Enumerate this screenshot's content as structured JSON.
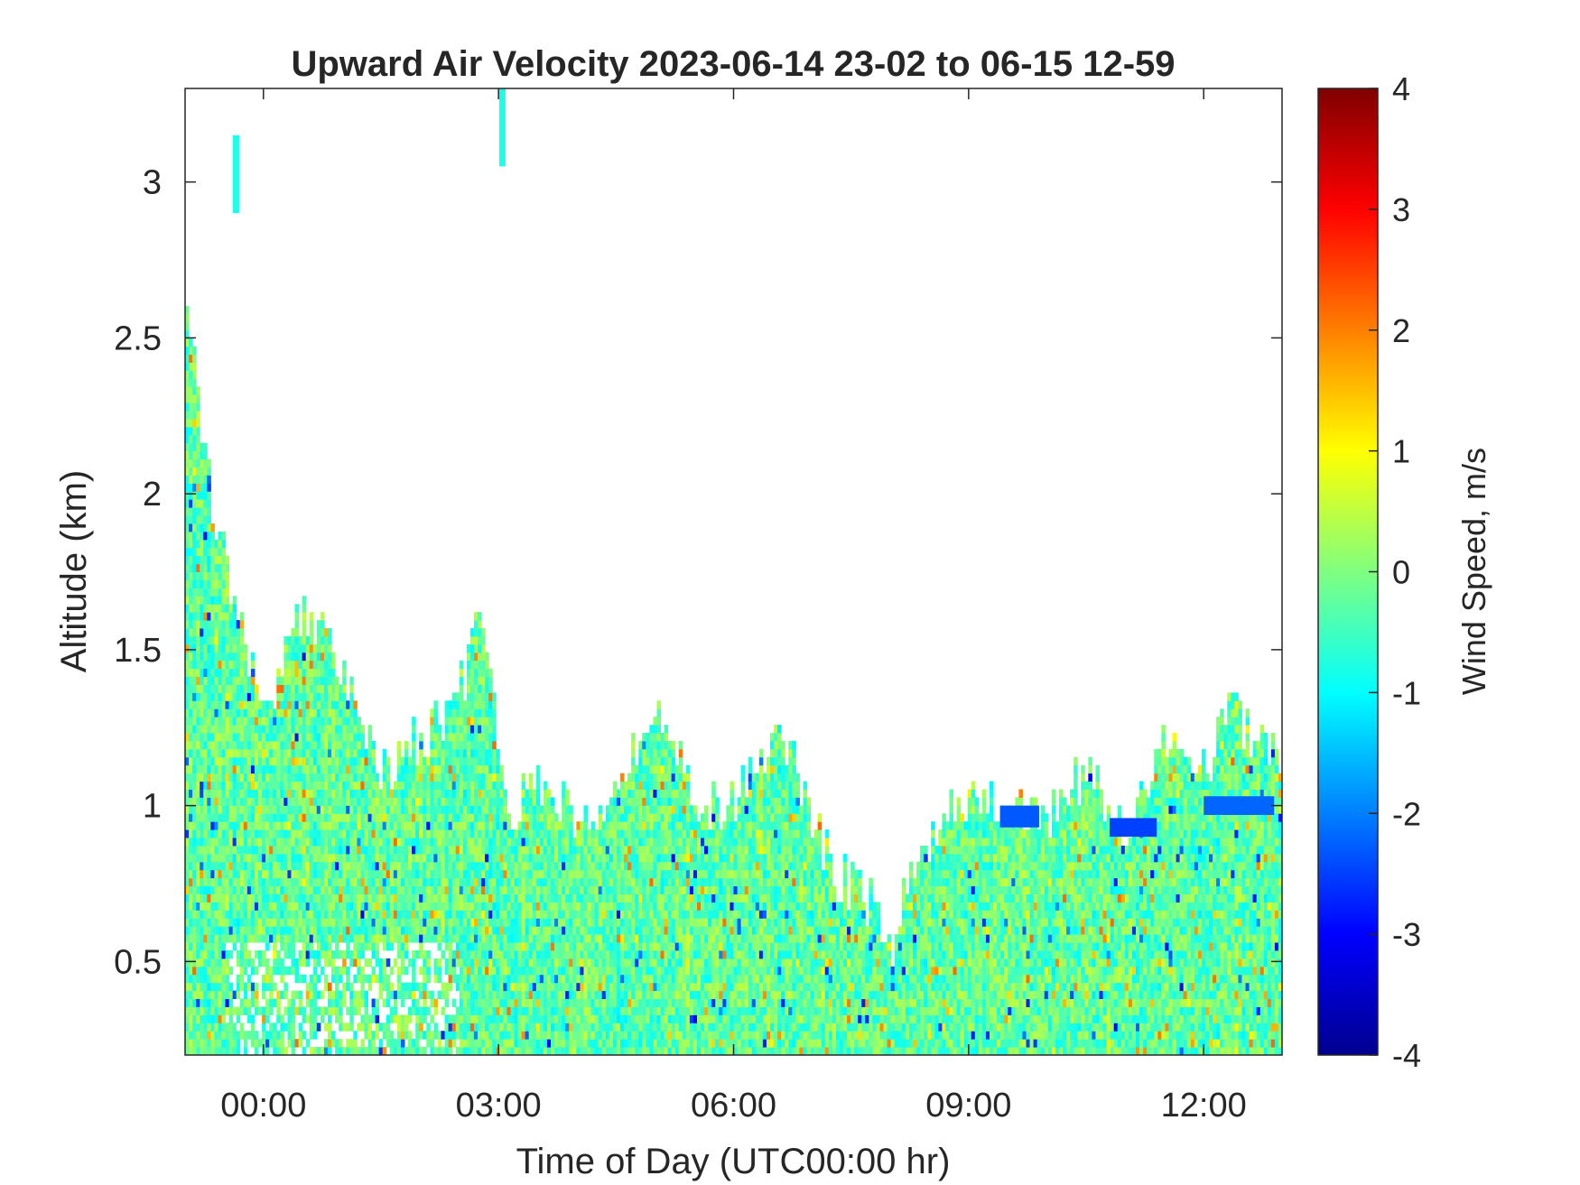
{
  "chart_data": {
    "type": "heatmap",
    "title": "Upward Air Velocity 2023-06-14 23-02 to 06-15 12-59",
    "xlabel": "Time of Day (UTC00:00 hr)",
    "ylabel": "Altitude (km)",
    "x_range_hours": [
      -1.0,
      13.0
    ],
    "xticks": [
      {
        "value": 0,
        "label": "00:00"
      },
      {
        "value": 3,
        "label": "03:00"
      },
      {
        "value": 6,
        "label": "06:00"
      },
      {
        "value": 9,
        "label": "09:00"
      },
      {
        "value": 12,
        "label": "12:00"
      }
    ],
    "ylim": [
      0.2,
      3.3
    ],
    "yticks": [
      {
        "value": 0.5,
        "label": "0.5"
      },
      {
        "value": 1.0,
        "label": "1"
      },
      {
        "value": 1.5,
        "label": "1.5"
      },
      {
        "value": 2.0,
        "label": "2"
      },
      {
        "value": 2.5,
        "label": "2.5"
      },
      {
        "value": 3.0,
        "label": "3"
      }
    ],
    "colorbar": {
      "label": "Wind Speed, m/s",
      "range": [
        -4,
        4
      ],
      "colormap": "jet",
      "ticks": [
        {
          "value": 4,
          "label": "4"
        },
        {
          "value": 3,
          "label": "3"
        },
        {
          "value": 2,
          "label": "2"
        },
        {
          "value": 1,
          "label": "1"
        },
        {
          "value": 0,
          "label": "0"
        },
        {
          "value": -1,
          "label": "-1"
        },
        {
          "value": -2,
          "label": "-2"
        },
        {
          "value": -3,
          "label": "-3"
        },
        {
          "value": -4,
          "label": "-4"
        }
      ]
    },
    "echo_top_profile_km": [
      {
        "t": -1.0,
        "top": 2.6
      },
      {
        "t": -0.6,
        "top": 1.85
      },
      {
        "t": -0.3,
        "top": 1.6
      },
      {
        "t": 0.0,
        "top": 1.25
      },
      {
        "t": 0.5,
        "top": 1.6
      },
      {
        "t": 1.0,
        "top": 1.45
      },
      {
        "t": 1.5,
        "top": 1.1
      },
      {
        "t": 2.0,
        "top": 1.2
      },
      {
        "t": 2.5,
        "top": 1.35
      },
      {
        "t": 2.8,
        "top": 1.6
      },
      {
        "t": 3.1,
        "top": 0.95
      },
      {
        "t": 3.5,
        "top": 1.1
      },
      {
        "t": 4.0,
        "top": 0.95
      },
      {
        "t": 4.5,
        "top": 1.0
      },
      {
        "t": 5.0,
        "top": 1.3
      },
      {
        "t": 5.5,
        "top": 1.0
      },
      {
        "t": 6.0,
        "top": 1.0
      },
      {
        "t": 6.6,
        "top": 1.25
      },
      {
        "t": 7.0,
        "top": 0.95
      },
      {
        "t": 7.3,
        "top": 0.75
      },
      {
        "t": 7.7,
        "top": 0.7
      },
      {
        "t": 8.0,
        "top": 0.5
      },
      {
        "t": 8.3,
        "top": 0.85
      },
      {
        "t": 8.7,
        "top": 0.95
      },
      {
        "t": 9.0,
        "top": 1.0
      },
      {
        "t": 9.5,
        "top": 1.0
      },
      {
        "t": 10.0,
        "top": 0.95
      },
      {
        "t": 10.5,
        "top": 1.1
      },
      {
        "t": 11.0,
        "top": 0.9
      },
      {
        "t": 11.5,
        "top": 1.2
      },
      {
        "t": 12.0,
        "top": 1.1
      },
      {
        "t": 12.3,
        "top": 1.3
      },
      {
        "t": 13.0,
        "top": 1.15
      }
    ],
    "typical_velocity_ms": [
      -1.0,
      0.5
    ],
    "notable_features": [
      {
        "t": -0.35,
        "z_min": 2.9,
        "z_max": 3.15,
        "velocity": -0.8
      },
      {
        "t": 3.05,
        "z_min": 3.05,
        "z_max": 3.3,
        "velocity": -0.8
      },
      {
        "t_min": 9.4,
        "t_max": 9.9,
        "z_min": 0.93,
        "z_max": 1.0,
        "velocity": -2.3
      },
      {
        "t_min": 10.8,
        "t_max": 11.4,
        "z_min": 0.9,
        "z_max": 0.96,
        "velocity": -2.5
      },
      {
        "t_min": 12.0,
        "t_max": 12.9,
        "z_min": 0.97,
        "z_max": 1.03,
        "velocity": -2.2
      }
    ]
  }
}
